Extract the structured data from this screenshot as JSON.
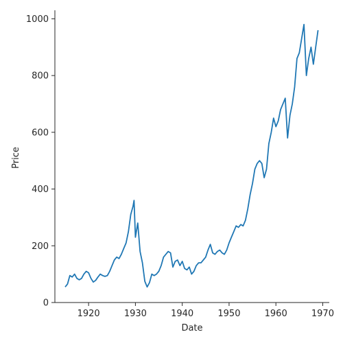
{
  "chart_data": {
    "type": "line",
    "title": "",
    "xlabel": "Date",
    "ylabel": "Price",
    "xlim": [
      1912.8,
      1971.4
    ],
    "ylim": [
      0,
      1030
    ],
    "xticks": [
      1920,
      1930,
      1940,
      1950,
      1960,
      1970
    ],
    "yticks": [
      0,
      200,
      400,
      600,
      800,
      1000
    ],
    "grid": false,
    "legend": "none",
    "color": "#1f77b4",
    "series": [
      {
        "x": [
          1915.0,
          1915.5,
          1916.0,
          1916.5,
          1917.0,
          1917.5,
          1918.0,
          1918.5,
          1919.0,
          1919.5,
          1920.0,
          1920.5,
          1921.0,
          1921.5,
          1922.0,
          1922.5,
          1923.0,
          1923.5,
          1924.0,
          1924.5,
          1925.0,
          1925.5,
          1926.0,
          1926.5,
          1927.0,
          1927.5,
          1928.0,
          1928.5,
          1929.0,
          1929.5,
          1929.7,
          1930.0,
          1930.5,
          1931.0,
          1931.5,
          1932.0,
          1932.5,
          1933.0,
          1933.5,
          1934.0,
          1934.5,
          1935.0,
          1935.5,
          1936.0,
          1936.5,
          1937.0,
          1937.5,
          1938.0,
          1938.5,
          1939.0,
          1939.5,
          1940.0,
          1940.5,
          1941.0,
          1941.5,
          1942.0,
          1942.5,
          1943.0,
          1943.5,
          1944.0,
          1944.5,
          1945.0,
          1945.5,
          1946.0,
          1946.5,
          1947.0,
          1947.5,
          1948.0,
          1948.5,
          1949.0,
          1949.5,
          1950.0,
          1950.5,
          1951.0,
          1951.5,
          1952.0,
          1952.5,
          1953.0,
          1953.5,
          1954.0,
          1954.5,
          1955.0,
          1955.5,
          1956.0,
          1956.5,
          1957.0,
          1957.5,
          1958.0,
          1958.5,
          1959.0,
          1959.5,
          1960.0,
          1960.5,
          1961.0,
          1961.5,
          1962.0,
          1962.5,
          1963.0,
          1963.5,
          1964.0,
          1964.5,
          1965.0,
          1965.5,
          1966.0,
          1966.5,
          1967.0,
          1967.5,
          1968.0,
          1968.5,
          1969.0
        ],
        "values": [
          55,
          65,
          95,
          90,
          100,
          85,
          80,
          85,
          100,
          110,
          105,
          85,
          72,
          78,
          90,
          100,
          95,
          92,
          95,
          110,
          130,
          150,
          160,
          155,
          170,
          190,
          210,
          250,
          310,
          340,
          360,
          230,
          280,
          180,
          140,
          75,
          55,
          70,
          100,
          95,
          100,
          110,
          130,
          160,
          170,
          180,
          175,
          125,
          145,
          150,
          130,
          145,
          120,
          115,
          125,
          100,
          110,
          130,
          140,
          140,
          150,
          160,
          185,
          205,
          175,
          170,
          180,
          185,
          175,
          170,
          185,
          210,
          230,
          250,
          270,
          265,
          275,
          270,
          290,
          330,
          380,
          420,
          470,
          490,
          500,
          490,
          440,
          470,
          560,
          600,
          650,
          620,
          640,
          680,
          700,
          720,
          580,
          660,
          700,
          760,
          860,
          880,
          930,
          980,
          800,
          860,
          900,
          840,
          900,
          960
        ]
      }
    ]
  }
}
